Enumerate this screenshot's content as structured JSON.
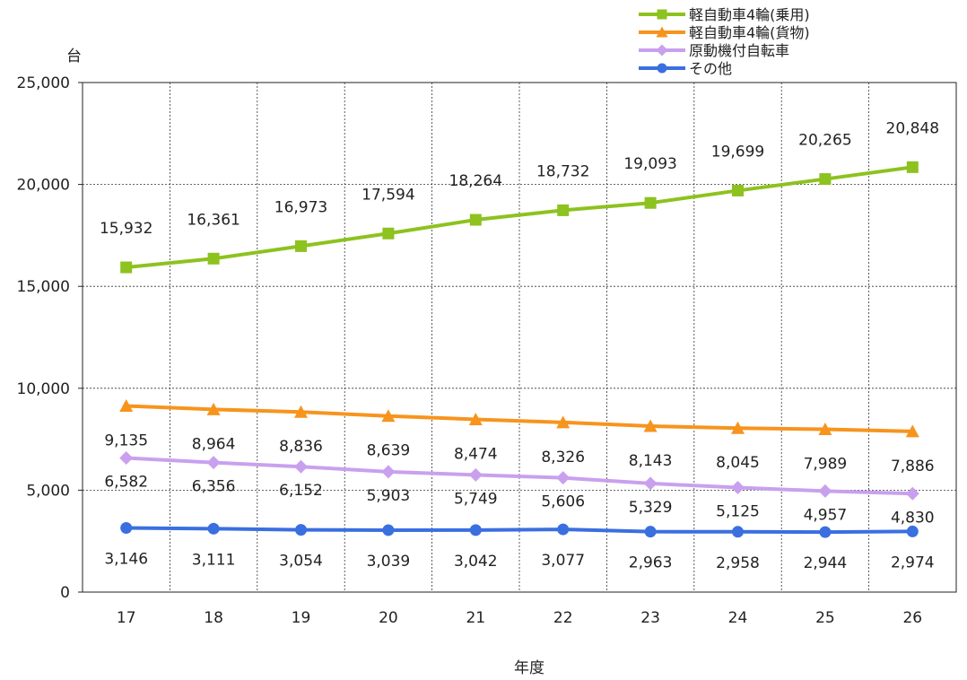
{
  "chart_data": {
    "type": "line",
    "title": "",
    "ylabel": "台",
    "xlabel": "年度",
    "ylim": [
      0,
      25000
    ],
    "yticks": [
      0,
      5000,
      10000,
      15000,
      20000,
      25000
    ],
    "ytick_labels": [
      "0",
      "5,000",
      "10,000",
      "15,000",
      "20,000",
      "25,000"
    ],
    "categories": [
      "17",
      "18",
      "19",
      "20",
      "21",
      "22",
      "23",
      "24",
      "25",
      "26"
    ],
    "grid": true,
    "legend_position": "top-right",
    "series": [
      {
        "name": "軽自動車4輪(乗用)",
        "color": "#8dc21f",
        "marker": "square",
        "values": [
          15932,
          16361,
          16973,
          17594,
          18264,
          18732,
          19093,
          19699,
          20265,
          20848
        ],
        "labels": [
          "15,932",
          "16,361",
          "16,973",
          "17,594",
          "18,264",
          "18,732",
          "19,093",
          "19,699",
          "20,265",
          "20,848"
        ]
      },
      {
        "name": "軽自動車4輪(貨物)",
        "color": "#f7941d",
        "marker": "triangle",
        "values": [
          9135,
          8964,
          8836,
          8639,
          8474,
          8326,
          8143,
          8045,
          7989,
          7886
        ],
        "labels": [
          "9,135",
          "8,964",
          "8,836",
          "8,639",
          "8,474",
          "8,326",
          "8,143",
          "8,045",
          "7,989",
          "7,886"
        ]
      },
      {
        "name": "原動機付自転車",
        "color": "#c9a0ee",
        "marker": "diamond",
        "values": [
          6582,
          6356,
          6152,
          5903,
          5749,
          5606,
          5329,
          5125,
          4957,
          4830
        ],
        "labels": [
          "6,582",
          "6,356",
          "6,152",
          "5,903",
          "5,749",
          "5,606",
          "5,329",
          "5,125",
          "4,957",
          "4,830"
        ]
      },
      {
        "name": "その他",
        "color": "#3a6fe0",
        "marker": "circle",
        "values": [
          3146,
          3111,
          3054,
          3039,
          3042,
          3077,
          2963,
          2958,
          2944,
          2974
        ],
        "labels": [
          "3,146",
          "3,111",
          "3,054",
          "3,039",
          "3,042",
          "3,077",
          "2,963",
          "2,958",
          "2,944",
          "2,974"
        ]
      }
    ]
  }
}
